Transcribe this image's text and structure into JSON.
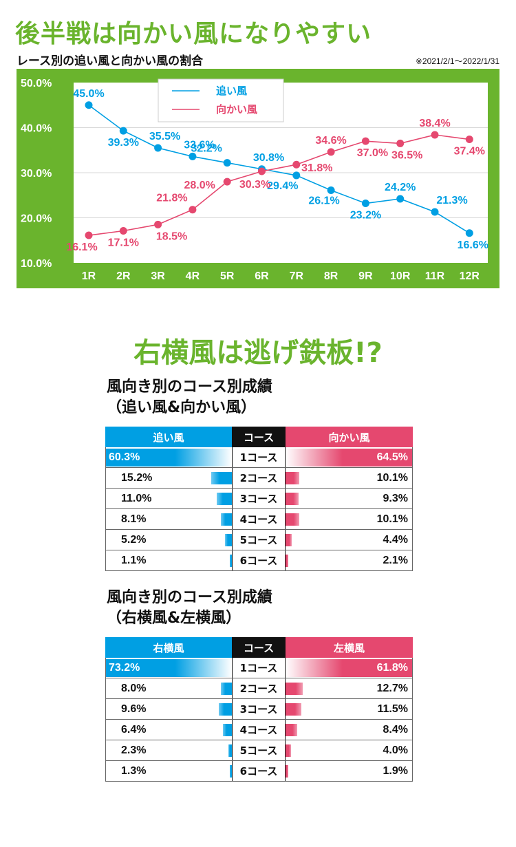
{
  "section1": {
    "title": "後半戦は向かい風になりやすい",
    "subtitle": "レース別の追い風と向かい風の割合",
    "period": "※2021/2/1〜2022/1/31"
  },
  "chart_data": {
    "type": "line",
    "title": "レース別の追い風と向かい風の割合",
    "categories": [
      "1R",
      "2R",
      "3R",
      "4R",
      "5R",
      "6R",
      "7R",
      "8R",
      "9R",
      "10R",
      "11R",
      "12R"
    ],
    "y_tick_labels": [
      "50.0%",
      "40.0%",
      "30.0%",
      "20.0%",
      "10.0%"
    ],
    "ylim": [
      10,
      50
    ],
    "grid": true,
    "legend_position": "top-left",
    "series": [
      {
        "name": "追い風",
        "color": "#009fe3",
        "values": [
          45.0,
          39.3,
          35.5,
          33.6,
          32.2,
          30.8,
          29.4,
          26.1,
          23.2,
          24.2,
          21.3,
          16.6
        ],
        "labels": [
          "45.0%",
          "39.3%",
          "35.5%",
          "33.6%",
          "32.2%",
          "30.8%",
          "29.4%",
          "26.1%",
          "23.2%",
          "24.2%",
          "21.3%",
          "16.6%"
        ]
      },
      {
        "name": "向かい風",
        "color": "#e5486f",
        "values": [
          16.1,
          17.1,
          18.5,
          21.8,
          28.0,
          30.3,
          31.8,
          34.6,
          37.0,
          36.5,
          38.4,
          37.4
        ],
        "labels": [
          "16.1%",
          "17.1%",
          "18.5%",
          "21.8%",
          "28.0%",
          "30.3%",
          "31.8%",
          "34.6%",
          "37.0%",
          "36.5%",
          "38.4%",
          "37.4%"
        ]
      }
    ]
  },
  "section2": {
    "title": "右横風は逃げ鉄板!?"
  },
  "table1": {
    "title_line1": "風向き別のコース別成績",
    "title_line2": "（追い風&向かい風）",
    "header_left": "追い風",
    "header_mid": "コース",
    "header_right": "向かい風",
    "rows": [
      {
        "course": "1コース",
        "left": "60.3%",
        "left_value": 60.3,
        "right": "64.5%",
        "right_value": 64.5
      },
      {
        "course": "2コース",
        "left": "15.2%",
        "left_value": 15.2,
        "right": "10.1%",
        "right_value": 10.1
      },
      {
        "course": "3コース",
        "left": "11.0%",
        "left_value": 11.0,
        "right": "9.3%",
        "right_value": 9.3
      },
      {
        "course": "4コース",
        "left": "8.1%",
        "left_value": 8.1,
        "right": "10.1%",
        "right_value": 10.1
      },
      {
        "course": "5コース",
        "left": "5.2%",
        "left_value": 5.2,
        "right": "4.4%",
        "right_value": 4.4
      },
      {
        "course": "6コース",
        "left": "1.1%",
        "left_value": 1.1,
        "right": "2.1%",
        "right_value": 2.1
      }
    ]
  },
  "table2": {
    "title_line1": "風向き別のコース別成績",
    "title_line2": "（右横風&左横風）",
    "header_left": "右横風",
    "header_mid": "コース",
    "header_right": "左横風",
    "rows": [
      {
        "course": "1コース",
        "left": "73.2%",
        "left_value": 73.2,
        "right": "61.8%",
        "right_value": 61.8
      },
      {
        "course": "2コース",
        "left": "8.0%",
        "left_value": 8.0,
        "right": "12.7%",
        "right_value": 12.7
      },
      {
        "course": "3コース",
        "left": "9.6%",
        "left_value": 9.6,
        "right": "11.5%",
        "right_value": 11.5
      },
      {
        "course": "4コース",
        "left": "6.4%",
        "left_value": 6.4,
        "right": "8.4%",
        "right_value": 8.4
      },
      {
        "course": "5コース",
        "left": "2.3%",
        "left_value": 2.3,
        "right": "4.0%",
        "right_value": 4.0
      },
      {
        "course": "6コース",
        "left": "1.3%",
        "left_value": 1.3,
        "right": "1.9%",
        "right_value": 1.9
      }
    ]
  }
}
